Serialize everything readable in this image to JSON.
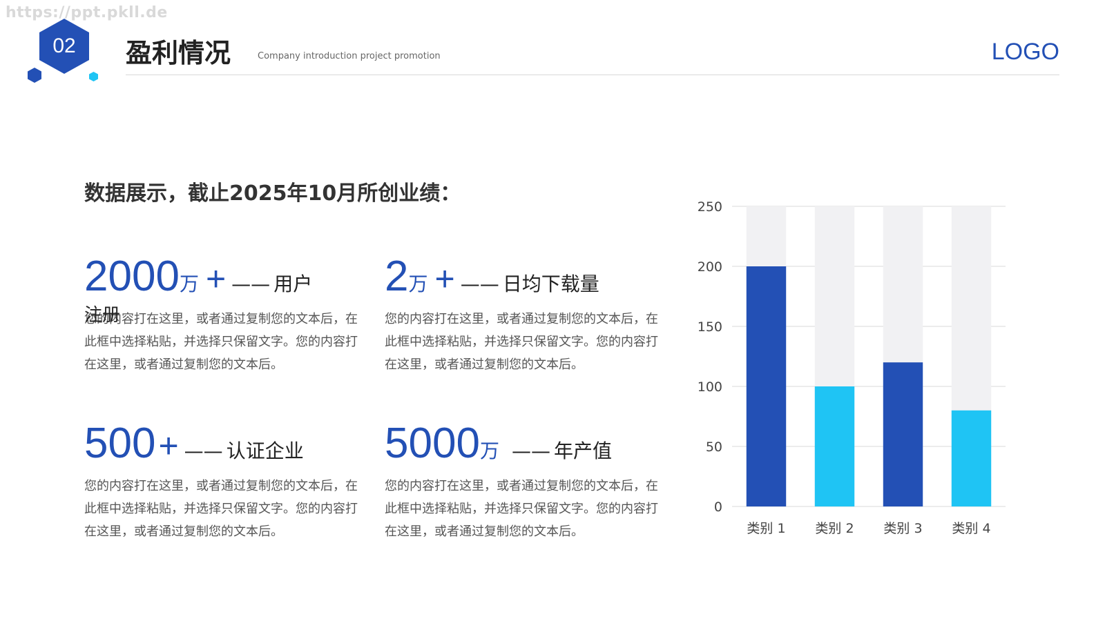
{
  "watermark": "https://ppt.pkll.de",
  "header": {
    "section_number": "02",
    "title": "盈利情况",
    "subtitle": "Company introduction project promotion",
    "logo": "LOGO"
  },
  "headline": "数据展示，截止2025年10月所创业绩：",
  "colors": {
    "primary": "#2350b5",
    "accent": "#1fc4f4",
    "track": "#f1f1f3",
    "grid": "#d9d9d9"
  },
  "stats": [
    {
      "number": "2000",
      "unit": "万",
      "plus": "+",
      "dash": "——",
      "label": "用户",
      "overflow": "注册",
      "desc": "您的内容打在这里，或者通过复制您的文本后，在此框中选择粘贴，并选择只保留文字。您的内容打在这里，或者通过复制您的文本后。"
    },
    {
      "number": "2",
      "unit": "万",
      "plus": "+",
      "dash": "——",
      "label": "日均下载量",
      "desc": "您的内容打在这里，或者通过复制您的文本后，在此框中选择粘贴，并选择只保留文字。您的内容打在这里，或者通过复制您的文本后。"
    },
    {
      "number": "500",
      "unit": "",
      "plus": "+",
      "dash": "——",
      "label": "认证企业",
      "desc": "您的内容打在这里，或者通过复制您的文本后，在此框中选择粘贴，并选择只保留文字。您的内容打在这里，或者通过复制您的文本后。"
    },
    {
      "number": "5000",
      "unit": "万",
      "plus": "",
      "dash": "——",
      "label": "年产值",
      "desc": "您的内容打在这里，或者通过复制您的文本后，在此框中选择粘贴，并选择只保留文字。您的内容打在这里，或者通过复制您的文本后。"
    }
  ],
  "chart_data": {
    "type": "bar",
    "categories": [
      "类别 1",
      "类别 2",
      "类别 3",
      "类别 4"
    ],
    "values": [
      200,
      100,
      120,
      80
    ],
    "bar_colors": [
      "#2350b5",
      "#1fc4f4",
      "#2350b5",
      "#1fc4f4"
    ],
    "background_max": 250,
    "ylim": [
      0,
      250
    ],
    "yticks": [
      0,
      50,
      100,
      150,
      200,
      250
    ],
    "grid": true,
    "title": "",
    "xlabel": "",
    "ylabel": ""
  }
}
